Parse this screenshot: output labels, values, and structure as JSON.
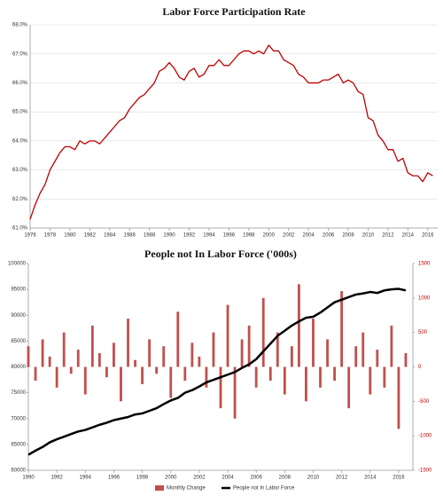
{
  "chart_data": [
    {
      "type": "line",
      "title": "Labor Force Participation Rate",
      "color": "#c00000",
      "grid": true,
      "x": [
        1976,
        1976.5,
        1977,
        1977.5,
        1978,
        1978.5,
        1979,
        1979.5,
        1980,
        1980.5,
        1981,
        1981.5,
        1982,
        1982.5,
        1983,
        1983.5,
        1984,
        1984.5,
        1985,
        1985.5,
        1986,
        1986.5,
        1987,
        1987.5,
        1988,
        1988.5,
        1989,
        1989.5,
        1990,
        1990.5,
        1991,
        1991.5,
        1992,
        1992.5,
        1993,
        1993.5,
        1994,
        1994.5,
        1995,
        1995.5,
        1996,
        1996.5,
        1997,
        1997.5,
        1998,
        1998.5,
        1999,
        1999.5,
        2000,
        2000.5,
        2001,
        2001.5,
        2002,
        2002.5,
        2003,
        2003.5,
        2004,
        2004.5,
        2005,
        2005.5,
        2006,
        2006.5,
        2007,
        2007.5,
        2008,
        2008.5,
        2009,
        2009.5,
        2010,
        2010.5,
        2011,
        2011.5,
        2012,
        2012.5,
        2013,
        2013.5,
        2014,
        2014.5,
        2015,
        2015.5,
        2016,
        2016.5
      ],
      "values": [
        61.3,
        61.8,
        62.2,
        62.5,
        63.0,
        63.3,
        63.6,
        63.8,
        63.8,
        63.7,
        64.0,
        63.9,
        64.0,
        64.0,
        63.9,
        64.1,
        64.3,
        64.5,
        64.7,
        64.8,
        65.1,
        65.3,
        65.5,
        65.6,
        65.8,
        66.0,
        66.4,
        66.5,
        66.7,
        66.5,
        66.2,
        66.1,
        66.4,
        66.5,
        66.2,
        66.3,
        66.6,
        66.6,
        66.8,
        66.6,
        66.6,
        66.8,
        67.0,
        67.1,
        67.1,
        67.0,
        67.1,
        67.0,
        67.3,
        67.1,
        67.1,
        66.8,
        66.7,
        66.6,
        66.3,
        66.2,
        66.0,
        66.0,
        66.0,
        66.1,
        66.1,
        66.2,
        66.3,
        66.0,
        66.1,
        66.0,
        65.7,
        65.6,
        64.8,
        64.7,
        64.2,
        64.0,
        63.7,
        63.7,
        63.3,
        63.4,
        62.9,
        62.8,
        62.8,
        62.6,
        62.9,
        62.8
      ],
      "xlim": [
        1976,
        2017
      ],
      "xticks": [
        1976,
        1978,
        1980,
        1982,
        1984,
        1986,
        1988,
        1990,
        1992,
        1994,
        1996,
        1998,
        2000,
        2002,
        2004,
        2006,
        2008,
        2010,
        2012,
        2014,
        2016
      ],
      "ylim": [
        61,
        68
      ],
      "yticks": [
        {
          "value": 61,
          "label": "61.0%"
        },
        {
          "value": 62,
          "label": "62.0%"
        },
        {
          "value": 63,
          "label": "63.0%"
        },
        {
          "value": 64,
          "label": "64.0%"
        },
        {
          "value": 65,
          "label": "65.0%"
        },
        {
          "value": 66,
          "label": "66.0%"
        },
        {
          "value": 67,
          "label": "67.0%"
        },
        {
          "value": 68,
          "label": "68.0%"
        }
      ]
    },
    {
      "type": "combo",
      "title": "People not In Labor Force ('000s)",
      "grid": false,
      "x": [
        1990,
        1990.5,
        1991,
        1991.5,
        1992,
        1992.5,
        1993,
        1993.5,
        1994,
        1994.5,
        1995,
        1995.5,
        1996,
        1996.5,
        1997,
        1997.5,
        1998,
        1998.5,
        1999,
        1999.5,
        2000,
        2000.5,
        2001,
        2001.5,
        2002,
        2002.5,
        2003,
        2003.5,
        2004,
        2004.5,
        2005,
        2005.5,
        2006,
        2006.5,
        2007,
        2007.5,
        2008,
        2008.5,
        2009,
        2009.5,
        2010,
        2010.5,
        2011,
        2011.5,
        2012,
        2012.5,
        2013,
        2013.5,
        2014,
        2014.5,
        2015,
        2015.5,
        2016,
        2016.5
      ],
      "series": [
        {
          "name": "Monthly Change",
          "type": "bar",
          "axis": "y2",
          "color": "#c0504d",
          "values": [
            300,
            -200,
            400,
            150,
            -300,
            500,
            -100,
            250,
            -400,
            600,
            200,
            -150,
            350,
            -500,
            700,
            100,
            -250,
            400,
            -100,
            300,
            -450,
            800,
            -200,
            350,
            150,
            -300,
            500,
            -600,
            900,
            -750,
            400,
            600,
            -300,
            1000,
            -200,
            500,
            -400,
            300,
            1200,
            -500,
            700,
            -300,
            400,
            -200,
            1100,
            -600,
            300,
            500,
            -400,
            250,
            -300,
            600,
            -900,
            200
          ]
        },
        {
          "name": "People not In Labor Force",
          "type": "line",
          "color": "#000000",
          "values": [
            63000,
            63800,
            64500,
            65400,
            66000,
            66500,
            67000,
            67500,
            67800,
            68300,
            68800,
            69200,
            69700,
            70000,
            70300,
            70800,
            71000,
            71500,
            72000,
            72800,
            73500,
            74000,
            75000,
            75500,
            76200,
            77000,
            77500,
            78000,
            78500,
            79000,
            79800,
            80500,
            81500,
            83000,
            84500,
            86000,
            87000,
            88000,
            88800,
            89500,
            89700,
            90500,
            91500,
            92500,
            93000,
            93500,
            94000,
            94200,
            94500,
            94300,
            94800,
            95000,
            95100,
            94800
          ]
        }
      ],
      "xlim": [
        1990,
        2017
      ],
      "xticks": [
        1990,
        1992,
        1994,
        1996,
        1998,
        2000,
        2002,
        2004,
        2006,
        2008,
        2010,
        2012,
        2014,
        2016
      ],
      "ylim": [
        60000,
        100000
      ],
      "yticks": [
        60000,
        65000,
        70000,
        75000,
        80000,
        85000,
        90000,
        95000,
        100000
      ],
      "y2lim": [
        -1500,
        1500
      ],
      "y2ticks": [
        -1500,
        -1000,
        -500,
        0,
        500,
        1000,
        1500
      ]
    }
  ]
}
